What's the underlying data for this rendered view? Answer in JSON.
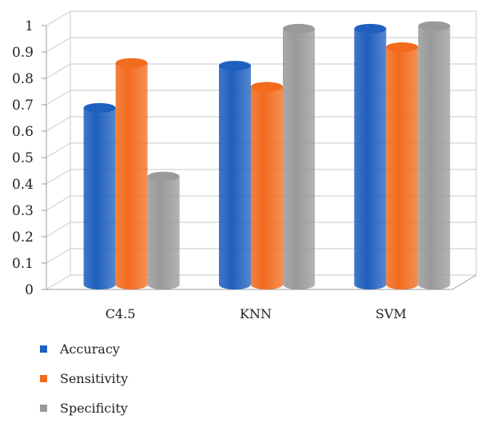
{
  "chart_data": {
    "type": "bar",
    "title": "",
    "xlabel": "",
    "ylabel": "",
    "ylim": [
      0,
      1
    ],
    "yticks": [
      0,
      0.1,
      0.2,
      0.3,
      0.4,
      0.5,
      0.6,
      0.7,
      0.8,
      0.9,
      1
    ],
    "ytick_labels": [
      "0",
      "0.1",
      "0.2",
      "0.3",
      "0.4",
      "0.5",
      "0.6",
      "0.7",
      "0.8",
      "0.9",
      "1"
    ],
    "categories": [
      "C4.5",
      "KNN",
      "SVM"
    ],
    "series": [
      {
        "name": "Accuracy",
        "values": [
          0.67,
          0.83,
          0.97
        ],
        "color": "#1f5fbf"
      },
      {
        "name": "Sensitivity",
        "values": [
          0.84,
          0.75,
          0.9
        ],
        "color": "#f26b1d"
      },
      {
        "name": "Specificity",
        "values": [
          0.41,
          0.97,
          0.98
        ],
        "color": "#9a9a9a"
      }
    ],
    "grid": true,
    "legend_position": "bottom-left",
    "style": "3d-cylinder"
  }
}
